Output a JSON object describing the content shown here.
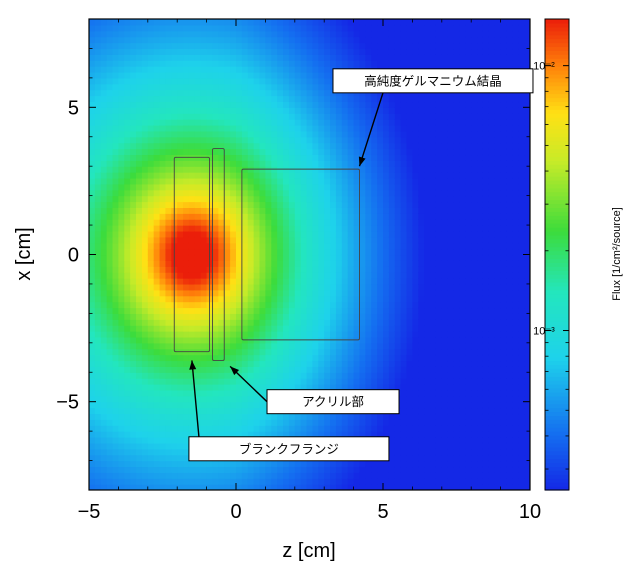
{
  "chart_data": {
    "type": "heatmap",
    "xlabel": "z [cm]",
    "ylabel": "x [cm]",
    "xlim": [
      -5,
      10
    ],
    "ylim": [
      -8,
      8
    ],
    "x_ticks": [
      -5,
      0,
      5,
      10
    ],
    "x_tick_labels": [
      "−5",
      "0",
      "5",
      "10"
    ],
    "y_ticks": [
      -5,
      0,
      5
    ],
    "y_tick_labels": [
      "−5",
      "0",
      "5"
    ],
    "colorbar": {
      "title": "Flux [1/cm²/source]",
      "scale": "log",
      "range": [
        0.00025,
        0.015
      ],
      "ticks": [
        0.001,
        0.01
      ],
      "tick_labels": [
        "10⁻³",
        "10⁻²"
      ]
    },
    "field": {
      "description_source": "peak flux near z=-1.5, x=0",
      "source_z": -1.5,
      "source_x": 0,
      "peak_value": 0.015,
      "min_value": 0.00025
    },
    "objects": [
      {
        "name": "ブランクフランジ",
        "z": [
          -2.1,
          -0.9
        ],
        "x": [
          -3.3,
          3.3
        ]
      },
      {
        "name": "アクリル部",
        "z": [
          -0.8,
          -0.4
        ],
        "x": [
          -3.6,
          3.6
        ]
      },
      {
        "name": "高純度ゲルマニウム結晶",
        "z": [
          0.2,
          4.2
        ],
        "x": [
          -2.9,
          2.9
        ]
      }
    ],
    "annotations": [
      {
        "text": "高純度ゲルマニウム結晶",
        "target": [
          4.2,
          3.0
        ],
        "box_center": [
          6.7,
          5.9
        ]
      },
      {
        "text": "アクリル部",
        "target": [
          -0.2,
          -3.8
        ],
        "box_center": [
          3.3,
          -5.0
        ]
      },
      {
        "text": "ブランクフランジ",
        "target": [
          -1.5,
          -3.6
        ],
        "box_center": [
          1.8,
          -6.6
        ]
      }
    ]
  }
}
